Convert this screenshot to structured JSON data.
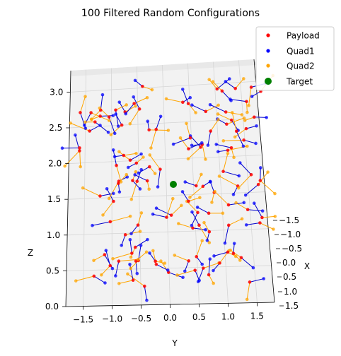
{
  "chart_data": {
    "type": "scatter",
    "title": "100 Filtered Random Configurations",
    "xlabel": "X",
    "ylabel": "Y",
    "zlabel": "Z",
    "x_ticks": [
      "−1.5",
      "−1.0",
      "−0.5",
      "0.0",
      "0.5",
      "1.0",
      "1.5"
    ],
    "y_ticks": [
      "−1.5",
      "−1.0",
      "−0.5",
      "0.0",
      "0.5",
      "1.0",
      "1.5"
    ],
    "z_ticks": [
      "0.0",
      "0.5",
      "1.0",
      "1.5",
      "2.0",
      "2.5",
      "3.0"
    ],
    "xlim": [
      -1.8,
      1.8
    ],
    "ylim": [
      -1.8,
      1.8
    ],
    "zlim": [
      0,
      3.3
    ],
    "grid": true,
    "legend_position": "top-right",
    "legend": [
      "Payload",
      "Quad1",
      "Quad2",
      "Target"
    ],
    "colors": {
      "payload": "#ff0000",
      "quad1": "#0000ff",
      "quad2": "#ffa500",
      "target": "#008000",
      "link_quad1": "#0000cc",
      "link_quad2": "#ffa500"
    },
    "target": {
      "x": 0.0,
      "y": 0.0,
      "z": 2.5
    },
    "configurations_count": 100
  }
}
